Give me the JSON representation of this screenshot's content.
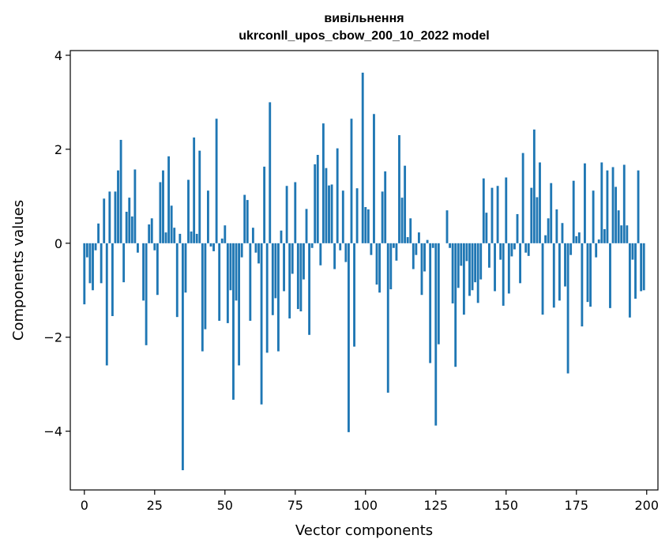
{
  "chart_data": {
    "type": "bar",
    "title": "вивільнення",
    "subtitle": "ukrconll_upos_cbow_200_10_2022 model",
    "xlabel": "Vector components",
    "ylabel": "Components values",
    "xlim": [
      -5,
      204
    ],
    "ylim": [
      -5.25,
      4.1
    ],
    "xticks": [
      0,
      25,
      50,
      75,
      100,
      125,
      150,
      175,
      200
    ],
    "xtick_labels": [
      "0",
      "25",
      "50",
      "75",
      "100",
      "125",
      "150",
      "175",
      "200"
    ],
    "yticks": [
      -4,
      -2,
      0,
      2,
      4
    ],
    "ytick_labels": [
      "−4",
      "−2",
      "0",
      "2",
      "4"
    ],
    "bar_color": "#1f77b4",
    "grid": false,
    "x": [
      0,
      1,
      2,
      3,
      4,
      5,
      6,
      7,
      8,
      9,
      10,
      11,
      12,
      13,
      14,
      15,
      16,
      17,
      18,
      19,
      20,
      21,
      22,
      23,
      24,
      25,
      26,
      27,
      28,
      29,
      30,
      31,
      32,
      33,
      34,
      35,
      36,
      37,
      38,
      39,
      40,
      41,
      42,
      43,
      44,
      45,
      46,
      47,
      48,
      49,
      50,
      51,
      52,
      53,
      54,
      55,
      56,
      57,
      58,
      59,
      60,
      61,
      62,
      63,
      64,
      65,
      66,
      67,
      68,
      69,
      70,
      71,
      72,
      73,
      74,
      75,
      76,
      77,
      78,
      79,
      80,
      81,
      82,
      83,
      84,
      85,
      86,
      87,
      88,
      89,
      90,
      91,
      92,
      93,
      94,
      95,
      96,
      97,
      98,
      99,
      100,
      101,
      102,
      103,
      104,
      105,
      106,
      107,
      108,
      109,
      110,
      111,
      112,
      113,
      114,
      115,
      116,
      117,
      118,
      119,
      120,
      121,
      122,
      123,
      124,
      125,
      126,
      127,
      128,
      129,
      130,
      131,
      132,
      133,
      134,
      135,
      136,
      137,
      138,
      139,
      140,
      141,
      142,
      143,
      144,
      145,
      146,
      147,
      148,
      149,
      150,
      151,
      152,
      153,
      154,
      155,
      156,
      157,
      158,
      159,
      160,
      161,
      162,
      163,
      164,
      165,
      166,
      167,
      168,
      169,
      170,
      171,
      172,
      173,
      174,
      175,
      176,
      177,
      178,
      179,
      180,
      181,
      182,
      183,
      184,
      185,
      186,
      187,
      188,
      189,
      190,
      191,
      192,
      193,
      194,
      195,
      196,
      197,
      198,
      199
    ],
    "values": [
      -1.3,
      -0.3,
      -0.85,
      -1.0,
      -0.15,
      0.42,
      -0.85,
      0.95,
      -2.6,
      1.1,
      -1.55,
      1.1,
      1.55,
      2.2,
      -0.83,
      0.67,
      0.97,
      0.57,
      1.57,
      -0.2,
      0.0,
      -1.22,
      -2.17,
      0.4,
      0.53,
      -0.15,
      -1.1,
      1.3,
      1.55,
      0.23,
      1.85,
      0.8,
      0.33,
      -1.57,
      0.2,
      -4.83,
      -1.05,
      1.35,
      0.25,
      2.25,
      0.2,
      1.97,
      -2.3,
      -1.83,
      1.12,
      -0.07,
      -0.17,
      2.65,
      -1.65,
      0.1,
      0.38,
      -1.7,
      -1.0,
      -3.33,
      -1.22,
      -2.6,
      -0.3,
      1.03,
      0.92,
      -1.65,
      0.33,
      -0.2,
      -0.43,
      -3.43,
      1.63,
      -2.33,
      3.0,
      -1.53,
      -1.17,
      -2.3,
      0.27,
      -1.02,
      1.22,
      -1.6,
      -0.65,
      1.3,
      -1.4,
      -1.45,
      -0.77,
      0.73,
      -1.95,
      -0.1,
      1.68,
      1.88,
      -0.47,
      2.55,
      1.6,
      1.23,
      1.25,
      -0.55,
      2.02,
      -0.15,
      1.12,
      -0.4,
      -4.02,
      2.65,
      -2.2,
      1.17,
      0.0,
      3.63,
      0.77,
      0.72,
      -0.25,
      2.75,
      -0.88,
      -1.05,
      1.1,
      1.53,
      -3.18,
      -0.98,
      -0.1,
      -0.37,
      2.3,
      0.97,
      1.65,
      0.13,
      0.53,
      -0.55,
      -0.25,
      0.23,
      -1.1,
      -0.6,
      0.07,
      -2.55,
      -0.1,
      -3.88,
      -2.15,
      0.0,
      0.0,
      0.7,
      -0.1,
      -1.28,
      -2.63,
      -0.95,
      -0.48,
      -1.52,
      -0.38,
      -1.12,
      -1.0,
      -0.83,
      -1.27,
      -0.77,
      1.38,
      0.65,
      -0.52,
      1.18,
      -1.02,
      1.22,
      -0.35,
      -1.33,
      1.4,
      -1.07,
      -0.28,
      -0.13,
      0.62,
      -0.85,
      1.92,
      -0.2,
      -0.27,
      1.18,
      2.42,
      0.98,
      1.72,
      -1.52,
      0.17,
      0.53,
      1.28,
      -1.37,
      0.72,
      -1.22,
      0.43,
      -0.92,
      -2.77,
      -0.25,
      1.33,
      0.15,
      0.23,
      -1.77,
      1.7,
      -1.25,
      -1.35,
      1.12,
      -0.3,
      0.08,
      1.72,
      0.3,
      1.55,
      -1.38,
      1.62,
      1.2,
      0.7,
      0.38,
      1.67,
      0.38,
      -1.58,
      -0.35,
      -1.18,
      1.55,
      -1.02,
      -1.0
    ]
  }
}
